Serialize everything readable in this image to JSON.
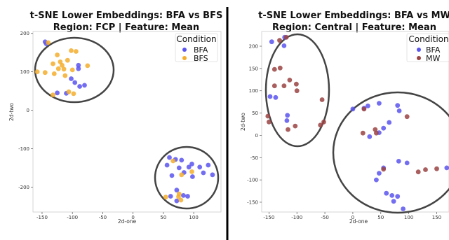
{
  "chart_data": [
    {
      "type": "scatter",
      "title": "t-SNE Lower Embeddings: BFA vs BFS",
      "subtitle": "Region: FCP | Feature: Mean",
      "xlabel": "2d-one",
      "ylabel": "2d-two",
      "xlim": [
        -165,
        145
      ],
      "ylim": [
        -265,
        205
      ],
      "xticks": [
        -150,
        -100,
        -50,
        0,
        50,
        100
      ],
      "yticks": [
        200,
        100,
        0,
        -100,
        -200
      ],
      "legend": {
        "title": "Condition",
        "placement": "top-right"
      },
      "series": [
        {
          "name": "BFA",
          "color": "#5a55ef",
          "points": [
            [
              -145,
              178
            ],
            [
              -143,
              173
            ],
            [
              -90,
              117
            ],
            [
              -90,
              108
            ],
            [
              -102,
              82
            ],
            [
              -96,
              72
            ],
            [
              -88,
              62
            ],
            [
              -80,
              65
            ],
            [
              -125,
              45
            ],
            [
              -110,
              44
            ],
            [
              60,
              -123
            ],
            [
              70,
              -128
            ],
            [
              80,
              -130
            ],
            [
              56,
              -143
            ],
            [
              76,
              -150
            ],
            [
              92,
              -148
            ],
            [
              97,
              -140
            ],
            [
              64,
              -170
            ],
            [
              84,
              -162
            ],
            [
              110,
              -148
            ],
            [
              124,
              -143
            ],
            [
              116,
              -163
            ],
            [
              131,
              -168
            ],
            [
              98,
              -173
            ],
            [
              72,
              -208
            ],
            [
              83,
              -222
            ],
            [
              62,
              -224
            ],
            [
              90,
              -224
            ],
            [
              72,
              -236
            ]
          ]
        },
        {
          "name": "BFS",
          "color": "#f3ae2c",
          "points": [
            [
              -140,
              176
            ],
            [
              -102,
              155
            ],
            [
              -94,
              153
            ],
            [
              -125,
              144
            ],
            [
              -132,
              121
            ],
            [
              -120,
              126
            ],
            [
              -108,
              130
            ],
            [
              -117,
              117
            ],
            [
              -123,
              108
            ],
            [
              -114,
              107
            ],
            [
              -100,
              105
            ],
            [
              -75,
              116
            ],
            [
              -158,
              100
            ],
            [
              -145,
              98
            ],
            [
              -130,
              95
            ],
            [
              -106,
              48
            ],
            [
              -98,
              43
            ],
            [
              -132,
              40
            ],
            [
              -112,
              90
            ],
            [
              66,
              -132
            ],
            [
              97,
              -160
            ],
            [
              80,
              -168
            ],
            [
              76,
              -218
            ],
            [
              54,
              -226
            ],
            [
              75,
              -225
            ],
            [
              79,
              -234
            ]
          ]
        }
      ],
      "ellipses_shown": true
    },
    {
      "type": "scatter",
      "title": "t-SNE Lower Embeddings: BFA vs MW",
      "subtitle": "Region: Central | Feature: Mean",
      "xlabel": "2d-one",
      "ylabel": "2d-two",
      "xlim": [
        -163,
        172
      ],
      "ylim": [
        -172,
        233
      ],
      "xticks": [
        -150,
        -100,
        -50,
        0,
        50,
        100,
        150
      ],
      "yticks": [
        200,
        150,
        100,
        50,
        0,
        -50,
        -100,
        -150
      ],
      "legend": {
        "title": "Condition",
        "placement": "top-right"
      },
      "series": [
        {
          "name": "BFA",
          "color": "#5a55ef",
          "points": [
            [
              -122,
              220
            ],
            [
              -145,
              210
            ],
            [
              -123,
              201
            ],
            [
              -148,
              87
            ],
            [
              -138,
              85
            ],
            [
              -117,
              45
            ],
            [
              -118,
              33
            ],
            [
              0,
              59
            ],
            [
              20,
              61
            ],
            [
              27,
              66
            ],
            [
              47,
              72
            ],
            [
              80,
              67
            ],
            [
              83,
              55
            ],
            [
              65,
              29
            ],
            [
              55,
              16
            ],
            [
              47,
              6
            ],
            [
              30,
              -3
            ],
            [
              55,
              -73
            ],
            [
              47,
              -85
            ],
            [
              42,
              -100
            ],
            [
              82,
              -58
            ],
            [
              97,
              -62
            ],
            [
              168,
              -73
            ],
            [
              60,
              -130
            ],
            [
              70,
              -135
            ],
            [
              80,
              -137
            ],
            [
              73,
              -148
            ],
            [
              90,
              -165
            ]
          ]
        },
        {
          "name": "MW",
          "color": "#9b4343",
          "points": [
            [
              -131,
              213
            ],
            [
              -119,
              220
            ],
            [
              -130,
              151
            ],
            [
              -140,
              148
            ],
            [
              -113,
              124
            ],
            [
              -140,
              111
            ],
            [
              -123,
              111
            ],
            [
              -101,
              115
            ],
            [
              -100,
              100
            ],
            [
              -152,
              43
            ],
            [
              -150,
              30
            ],
            [
              -116,
              13
            ],
            [
              -103,
              21
            ],
            [
              -55,
              80
            ],
            [
              -52,
              30
            ],
            [
              -58,
              23
            ],
            [
              18,
              5
            ],
            [
              20,
              59
            ],
            [
              42,
              5
            ],
            [
              40,
              13
            ],
            [
              97,
              42
            ],
            [
              55,
              -76
            ],
            [
              117,
              -82
            ],
            [
              130,
              -77
            ],
            [
              150,
              -75
            ]
          ]
        }
      ],
      "ellipses_shown": true
    }
  ]
}
